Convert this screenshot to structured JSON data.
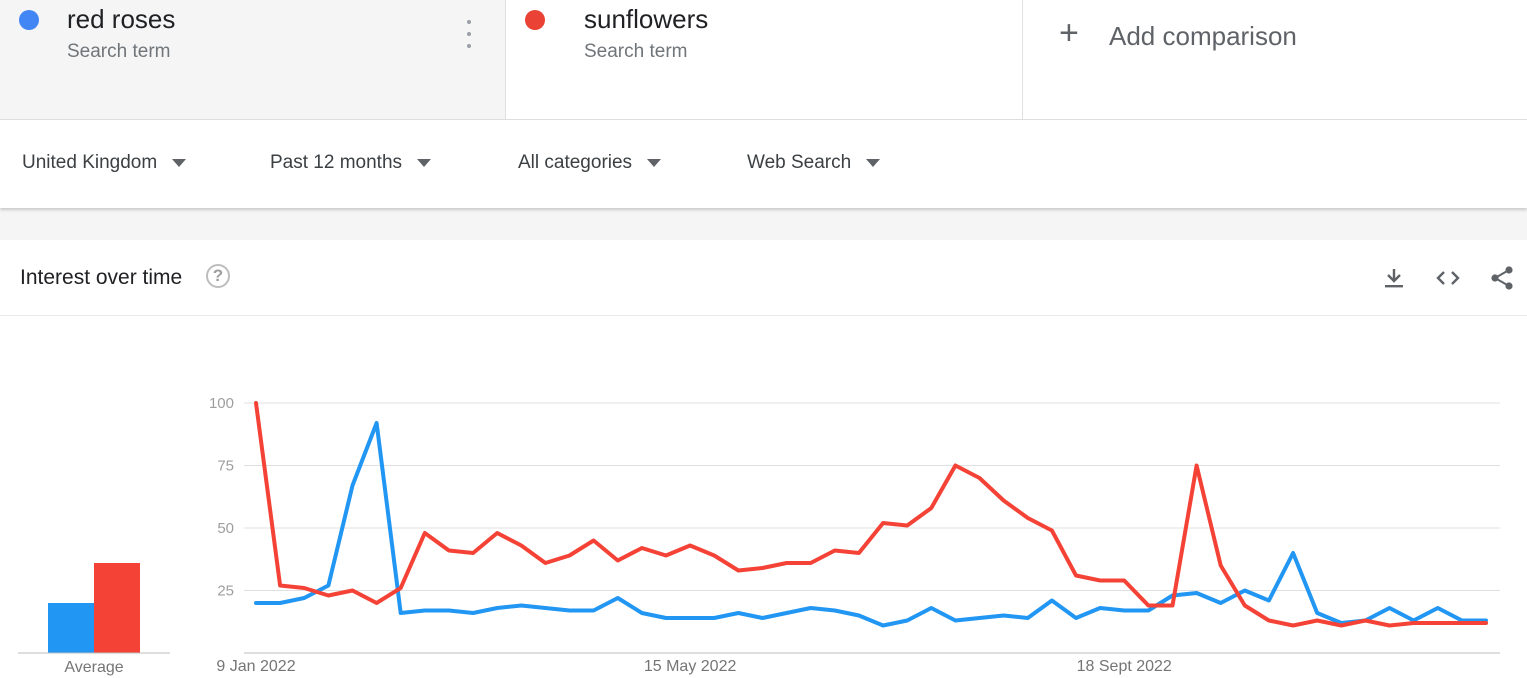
{
  "terms": [
    {
      "name": "red roses",
      "subtitle": "Search term",
      "color": "#4285f4"
    },
    {
      "name": "sunflowers",
      "subtitle": "Search term",
      "color": "#ea4335"
    }
  ],
  "add_comparison": {
    "label": "Add comparison"
  },
  "filters": {
    "region": "United Kingdom",
    "period": "Past 12 months",
    "category": "All categories",
    "search_type": "Web Search"
  },
  "card": {
    "title": "Interest over time",
    "help_glyph": "?"
  },
  "icons": {
    "download": "download-icon",
    "embed": "embed-code-icon",
    "share": "share-icon",
    "help": "help-icon",
    "more": "more-vert-icon",
    "add": "plus-icon"
  },
  "chart_data": {
    "type": "line",
    "x": [
      "9 Jan 2022",
      "16 Jan 2022",
      "23 Jan 2022",
      "30 Jan 2022",
      "6 Feb 2022",
      "13 Feb 2022",
      "20 Feb 2022",
      "27 Feb 2022",
      "6 Mar 2022",
      "13 Mar 2022",
      "20 Mar 2022",
      "27 Mar 2022",
      "3 Apr 2022",
      "10 Apr 2022",
      "17 Apr 2022",
      "24 Apr 2022",
      "1 May 2022",
      "8 May 2022",
      "15 May 2022",
      "22 May 2022",
      "29 May 2022",
      "5 Jun 2022",
      "12 Jun 2022",
      "19 Jun 2022",
      "26 Jun 2022",
      "3 Jul 2022",
      "10 Jul 2022",
      "17 Jul 2022",
      "24 Jul 2022",
      "31 Jul 2022",
      "7 Aug 2022",
      "14 Aug 2022",
      "21 Aug 2022",
      "28 Aug 2022",
      "4 Sept 2022",
      "11 Sept 2022",
      "18 Sept 2022",
      "25 Sept 2022",
      "2 Oct 2022",
      "9 Oct 2022",
      "16 Oct 2022",
      "23 Oct 2022",
      "30 Oct 2022",
      "6 Nov 2022",
      "13 Nov 2022",
      "20 Nov 2022",
      "27 Nov 2022",
      "4 Dec 2022",
      "11 Dec 2022",
      "18 Dec 2022",
      "25 Dec 2022",
      "1 Jan 2023"
    ],
    "x_tick_labels": [
      "9 Jan 2022",
      "15 May 2022",
      "18 Sept 2022"
    ],
    "x_tick_index": [
      0,
      18,
      36
    ],
    "yticks": [
      25,
      50,
      75,
      100
    ],
    "ylim": [
      0,
      100
    ],
    "grid": true,
    "series": [
      {
        "name": "red roses",
        "color": "#2196f3",
        "values": [
          20,
          20,
          22,
          27,
          67,
          92,
          16,
          17,
          17,
          16,
          18,
          19,
          18,
          17,
          17,
          22,
          16,
          14,
          14,
          14,
          16,
          14,
          16,
          18,
          17,
          15,
          11,
          13,
          18,
          13,
          14,
          15,
          14,
          21,
          14,
          18,
          17,
          17,
          23,
          24,
          20,
          25,
          21,
          40,
          16,
          12,
          13,
          18,
          13,
          18,
          13,
          13
        ]
      },
      {
        "name": "sunflowers",
        "color": "#f44336",
        "values": [
          100,
          27,
          26,
          23,
          25,
          20,
          26,
          48,
          41,
          40,
          48,
          43,
          36,
          39,
          45,
          37,
          42,
          39,
          43,
          39,
          33,
          34,
          36,
          36,
          41,
          40,
          52,
          51,
          58,
          75,
          70,
          61,
          54,
          49,
          31,
          29,
          29,
          19,
          19,
          75,
          35,
          19,
          13,
          11,
          13,
          11,
          13,
          11,
          12,
          12,
          12,
          12
        ]
      }
    ],
    "averages": [
      {
        "name": "red roses",
        "value": 20,
        "color": "#2196f3"
      },
      {
        "name": "sunflowers",
        "value": 36,
        "color": "#f44336"
      }
    ],
    "average_label": "Average"
  }
}
